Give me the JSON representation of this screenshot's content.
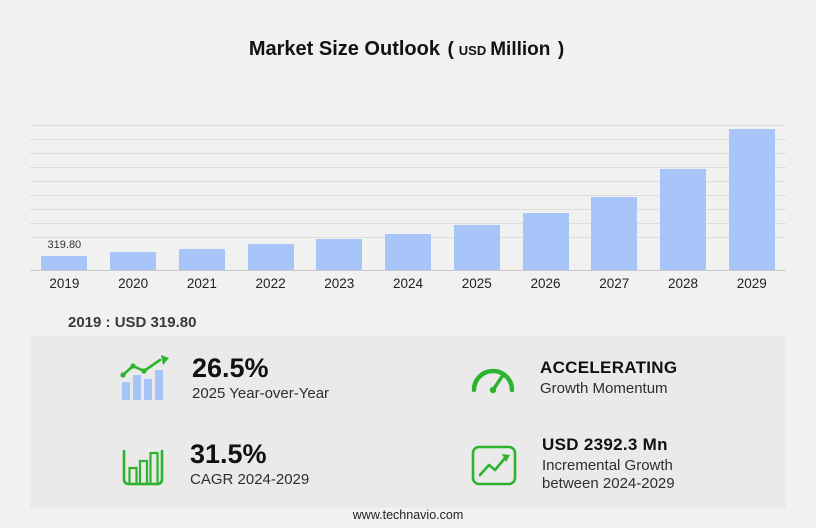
{
  "title": {
    "main": "Market Size Outlook",
    "paren_open": "(",
    "currency": "USD",
    "unit": "Million",
    "paren_close": ")"
  },
  "chart_data": {
    "type": "bar",
    "title": "Market Size Outlook (USD Million)",
    "categories": [
      "2019",
      "2020",
      "2021",
      "2022",
      "2023",
      "2024",
      "2025",
      "2026",
      "2027",
      "2028",
      "2029"
    ],
    "values": [
      319.8,
      400,
      485,
      590,
      705,
      815,
      1030,
      1300,
      1655,
      2290,
      3210
    ],
    "ylabel": "USD Million",
    "ylim": [
      0,
      3300
    ],
    "bar_color": "#a7c5f8",
    "gridlines": true,
    "legend": false,
    "annotations": [
      {
        "category": "2019",
        "text": "319.80"
      }
    ]
  },
  "subtitle": "2019 : USD  319.80",
  "stats": [
    {
      "icon": "growth-bars-icon",
      "value": "26.5%",
      "label": "2025 Year-over-Year"
    },
    {
      "icon": "speedometer-icon",
      "value": "ACCELERATING",
      "label": "Growth Momentum"
    },
    {
      "icon": "cagr-chart-icon",
      "value": "31.5%",
      "label": "CAGR 2024-2029"
    },
    {
      "icon": "incremental-growth-icon",
      "value": "USD 2392.3 Mn",
      "label": "Incremental Growth\nbetween 2024-2029"
    }
  ],
  "footer": "www.technavio.com",
  "colors": {
    "bar": "#a7c5f8",
    "green": "#2db32d",
    "background": "#f1f1f1",
    "panel": "#eaeaea"
  }
}
